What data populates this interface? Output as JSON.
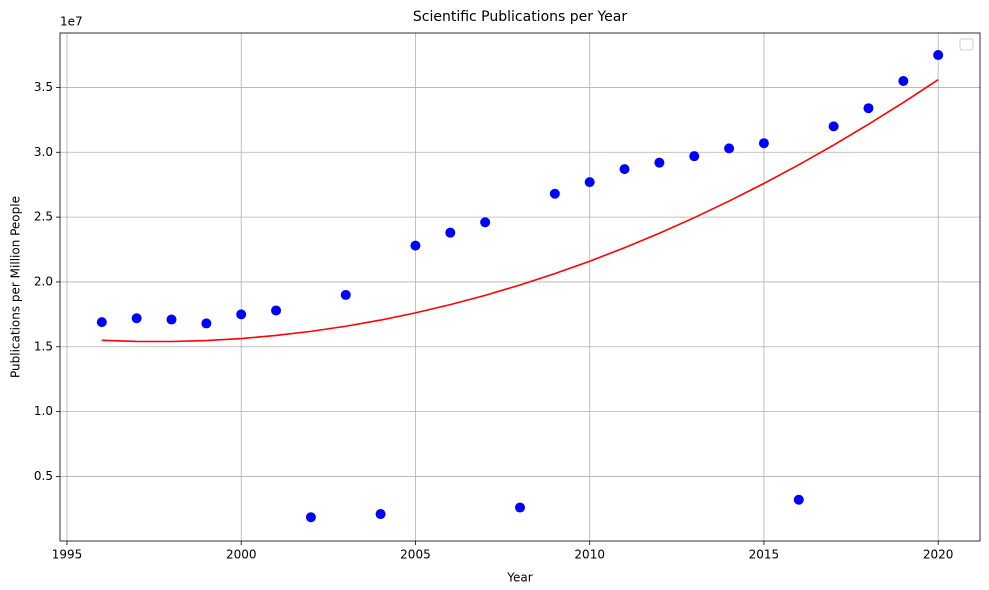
{
  "chart_data": {
    "type": "scatter",
    "title": "Scientific Publications per Year",
    "x_label": "Year",
    "y_label": "Publications per Million People",
    "y_offset_label": "1e7",
    "x": [
      1996,
      1997,
      1998,
      1999,
      2000,
      2001,
      2002,
      2003,
      2004,
      2005,
      2006,
      2007,
      2008,
      2009,
      2010,
      2011,
      2012,
      2013,
      2014,
      2015,
      2016,
      2017,
      2018,
      2019,
      2020
    ],
    "series": [
      {
        "color": "blue",
        "style": "marker",
        "values": [
          16900000,
          17200000,
          17100000,
          16800000,
          17500000,
          17800000,
          1850000,
          19000000,
          2100000,
          22800000,
          23800000,
          24600000,
          2600000,
          26800000,
          27700000,
          28700000,
          29200000,
          29700000,
          30300000,
          30700000,
          3200000,
          32000000,
          33400000,
          35500000,
          37500000
        ]
      },
      {
        "color": "red",
        "style": "line",
        "values": [
          15500000,
          15413000,
          15407000,
          15481000,
          15636000,
          15871000,
          16186000,
          16581000,
          17057000,
          17614000,
          18250000,
          18967000,
          19764000,
          20642000,
          21600000,
          22639000,
          23757000,
          24956000,
          26236000,
          27596000,
          29036000,
          30557000,
          32158000,
          33839000,
          35600000
        ]
      }
    ],
    "xlim": [
      1994.8,
      2021.2
    ],
    "xticks": [
      1995,
      2000,
      2005,
      2010,
      2015,
      2020
    ],
    "ylim": [
      20000,
      39200000
    ],
    "yticks": [
      {
        "value": 5000000,
        "label": "0.5"
      },
      {
        "value": 10000000,
        "label": "1.0"
      },
      {
        "value": 15000000,
        "label": "1.5"
      },
      {
        "value": 20000000,
        "label": "2.0"
      },
      {
        "value": 25000000,
        "label": "2.5"
      },
      {
        "value": 30000000,
        "label": "3.0"
      },
      {
        "value": 35000000,
        "label": "3.5"
      }
    ],
    "grid": true,
    "legend": "upper right"
  }
}
